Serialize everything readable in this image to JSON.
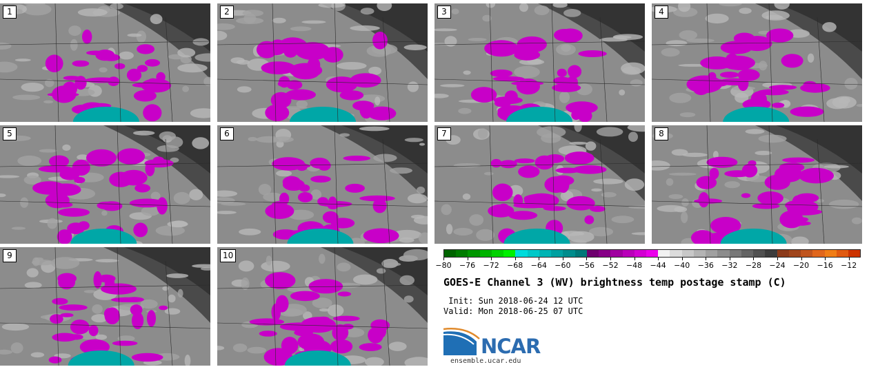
{
  "panels": [
    {
      "label": "1"
    },
    {
      "label": "2"
    },
    {
      "label": "3"
    },
    {
      "label": "4"
    },
    {
      "label": "5"
    },
    {
      "label": "6"
    },
    {
      "label": "7"
    },
    {
      "label": "8"
    },
    {
      "label": "9"
    },
    {
      "label": "10"
    }
  ],
  "colorbar": {
    "colors": [
      "#006400",
      "#007c00",
      "#009600",
      "#00b400",
      "#00d200",
      "#00f000",
      "#00dcdc",
      "#00c8c8",
      "#00b4b4",
      "#00a0a0",
      "#008c8c",
      "#007878",
      "#6e006e",
      "#870087",
      "#a000a0",
      "#b900b9",
      "#d200d2",
      "#eb00eb",
      "#f2f2f2",
      "#dcdcdc",
      "#c8c8c8",
      "#b4b4b4",
      "#a0a0a0",
      "#8c8c8c",
      "#787878",
      "#646464",
      "#505050",
      "#3c3c3c",
      "#8b3a1a",
      "#a0451c",
      "#c0551f",
      "#e0661c",
      "#f07d16",
      "#e05a10",
      "#cc3300"
    ],
    "ticks": [
      "−80",
      "−76",
      "−72",
      "−68",
      "−64",
      "−60",
      "−56",
      "−52",
      "−48",
      "−44",
      "−40",
      "−36",
      "−32",
      "−28",
      "−24",
      "−20",
      "−16",
      "−12"
    ]
  },
  "title": "GOES-E Channel 3 (WV) brightness temp postage stamp (C)",
  "init": " Init: Sun 2018-06-24 12 UTC",
  "valid": "Valid: Mon 2018-06-25 07 UTC",
  "logo": {
    "wordmark": "NCAR",
    "url": "ensemble.ucar.edu"
  }
}
